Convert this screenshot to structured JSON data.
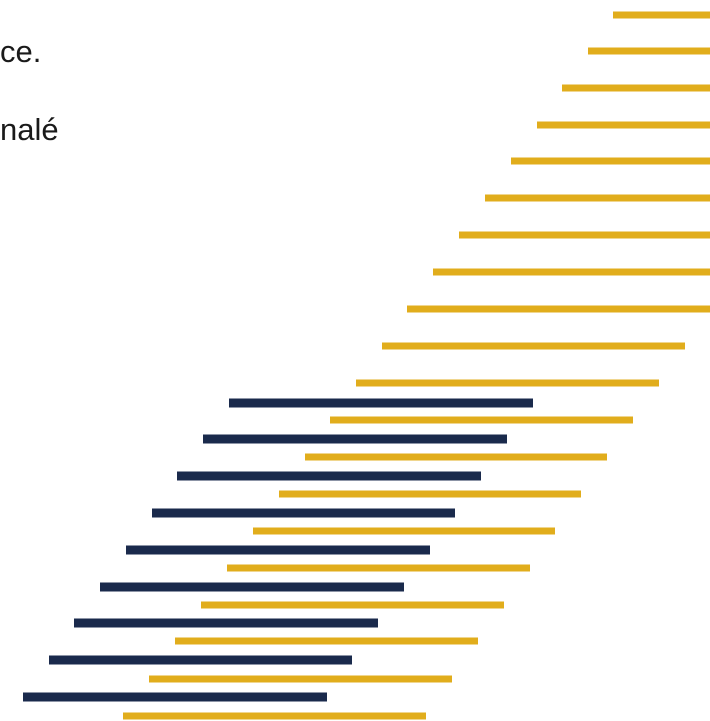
{
  "text": {
    "line1": "ce.",
    "line2": "nalé"
  },
  "colors": {
    "background": "#ffffff",
    "text": "#1a1a1a",
    "gold": "#E1AD1C",
    "navy": "#1A2A4C"
  }
}
